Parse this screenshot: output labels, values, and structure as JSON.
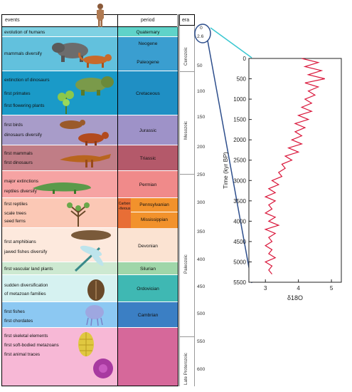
{
  "header": {
    "events": "events",
    "period": "period",
    "era": "era"
  },
  "rows": [
    {
      "events": [
        "evolution of humans"
      ],
      "color": "#7fd1e3"
    },
    {
      "events": [
        "mammals diversify"
      ],
      "color": "#62c1dd"
    },
    {
      "events": [
        "extinction of dinosaurs",
        "first primates",
        "first flowering plants"
      ],
      "color": "#1a9ac8"
    },
    {
      "events": [
        "first birds",
        "dinosaurs diversify"
      ],
      "color": "#a89cc9"
    },
    {
      "events": [
        "first mammals",
        "first dinosaurs"
      ],
      "color": "#c07d86"
    },
    {
      "events": [
        "major extinctions",
        "reptiles diversify"
      ],
      "color": "#f6a3a3"
    },
    {
      "events": [
        "first reptiles",
        "scale trees",
        "seed ferns"
      ],
      "color": "#fbc8b5"
    },
    {
      "events": [
        "first amphibians",
        "jawed fishes diversify"
      ],
      "color": "#fde9dd"
    },
    {
      "events": [
        "first vascular land plants"
      ],
      "color": "#cde9d1"
    },
    {
      "events": [
        "sudden diversification",
        "of metazoan families"
      ],
      "color": "#d6f2f1"
    },
    {
      "events": [
        "first fishes",
        "first chordates"
      ],
      "color": "#8cc8f2"
    },
    {
      "events": [
        "first skeletal elements",
        "first soft-bodied metazoans",
        "first animal traces"
      ],
      "color": "#f7b8d6"
    }
  ],
  "periods": [
    {
      "name": "Quaternary",
      "color": "#5fd3c9"
    },
    {
      "name": "Neogene",
      "color": "#3a9ed0"
    },
    {
      "name": "Paleogene",
      "color": "#3a9ed0"
    },
    {
      "name": "Cretaceous",
      "color": "#1f8fc4"
    },
    {
      "name": "Jurassic",
      "color": "#9e92c8"
    },
    {
      "name": "Triassic",
      "color": "#b4596a"
    },
    {
      "name": "Permian",
      "color": "#f08a8a"
    },
    {
      "name": "Carbon\n-iferous",
      "color": "#e86e36"
    },
    {
      "name": "Pennsylvanian",
      "color": "#f2922c"
    },
    {
      "name": "Mississippian",
      "color": "#f2922c"
    },
    {
      "name": "Devonian",
      "color": "#fbe3d2"
    },
    {
      "name": "Silurian",
      "color": "#9fd6a9"
    },
    {
      "name": "Ordovician",
      "color": "#3fb8b3"
    },
    {
      "name": "Cambrian",
      "color": "#3b7fc4"
    },
    {
      "name": "",
      "color": "#d6689a"
    }
  ],
  "eras": [
    "Cenozoic",
    "Mesozoic",
    "Paleozoic",
    "Late Proterozoic"
  ],
  "timescale_ticks": [
    "0",
    "2.6",
    "50",
    "100",
    "150",
    "200",
    "250",
    "300",
    "350",
    "400",
    "450",
    "500",
    "550",
    "600"
  ],
  "chart_data": {
    "type": "line",
    "title": "",
    "xlabel": "δ18O",
    "ylabel": "Time (kyr BP)",
    "xlim": [
      2.5,
      5.3
    ],
    "ylim": [
      5500,
      0
    ],
    "xticks": [
      3,
      4,
      5
    ],
    "yticks": [
      0,
      500,
      1000,
      1500,
      2000,
      2500,
      3000,
      3500,
      4000,
      4500,
      5000,
      5500
    ],
    "line_color": "#d9163a",
    "series": [
      {
        "values_note": "",
        "time": [
          0,
          100,
          200,
          300,
          400,
          500,
          600,
          700,
          800,
          900,
          1000,
          1100,
          1200,
          1300,
          1400,
          1500,
          1600,
          1700,
          1800,
          1900,
          2000,
          2100,
          2200,
          2300,
          2400,
          2500,
          2600,
          2700,
          2800,
          2900,
          3000,
          3100,
          3200,
          3300,
          3400,
          3500,
          3600,
          3700,
          3800,
          3900,
          4000,
          4100,
          4200,
          4300,
          4400,
          4500,
          4600,
          4700,
          4800,
          4900,
          5000,
          5100,
          5200,
          5300
        ],
        "d18O": [
          4.1,
          4.6,
          4.2,
          4.7,
          4.3,
          4.8,
          4.2,
          4.6,
          4.3,
          4.5,
          4.2,
          4.4,
          4.1,
          4.4,
          4.0,
          4.3,
          3.9,
          4.2,
          3.9,
          4.1,
          3.8,
          4.1,
          3.7,
          4.0,
          3.6,
          3.8,
          3.5,
          3.6,
          3.4,
          3.5,
          3.2,
          3.4,
          3.1,
          3.3,
          3.0,
          3.3,
          3.1,
          3.2,
          3.0,
          3.3,
          3.1,
          3.4,
          3.0,
          3.3,
          3.1,
          3.2,
          3.0,
          3.2,
          3.1,
          3.3,
          3.0,
          3.2,
          3.1,
          3.2
        ]
      }
    ]
  }
}
